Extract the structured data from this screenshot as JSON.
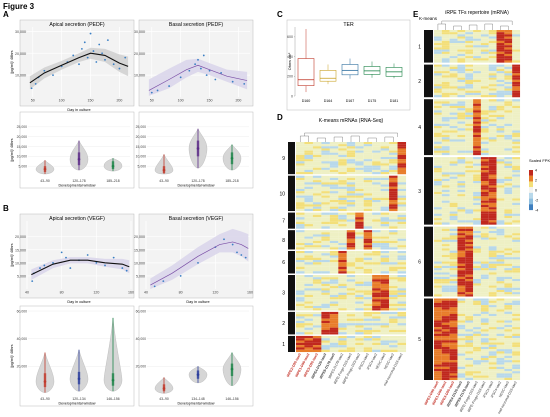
{
  "figure": {
    "title": "Figure 3"
  },
  "panel_letters": [
    "A",
    "B",
    "C",
    "D",
    "E"
  ],
  "chart_data": [
    {
      "id": "A-apical",
      "type": "scatter",
      "panel": "A",
      "title": "Apical secretion (PEDF)",
      "xlabel": "Day in culture",
      "ylabel": "[pg/ml]/ 48hrs",
      "xlim": [
        40,
        220
      ],
      "ylim": [
        0,
        32000
      ],
      "xticks": [
        "50",
        "100",
        "150",
        "200"
      ],
      "xtick_values": [
        50,
        100,
        150,
        200
      ],
      "yticks": [
        "10,000",
        "20,000",
        "30,000"
      ],
      "ytick_values": [
        10000,
        20000,
        30000
      ],
      "smooth": [
        [
          45,
          6500
        ],
        [
          70,
          11000
        ],
        [
          100,
          14500
        ],
        [
          130,
          18000
        ],
        [
          150,
          20000
        ],
        [
          175,
          19000
        ],
        [
          200,
          15500
        ],
        [
          215,
          14000
        ]
      ],
      "band": [
        [
          45,
          3500,
          9500
        ],
        [
          70,
          8500,
          13500
        ],
        [
          100,
          12500,
          16500
        ],
        [
          130,
          16000,
          20000
        ],
        [
          150,
          17500,
          22500
        ],
        [
          175,
          16000,
          22000
        ],
        [
          200,
          11500,
          19500
        ],
        [
          215,
          9500,
          18500
        ]
      ],
      "points": [
        [
          48,
          4000
        ],
        [
          55,
          6000
        ],
        [
          60,
          9000
        ],
        [
          70,
          12000
        ],
        [
          85,
          10000
        ],
        [
          100,
          14000
        ],
        [
          110,
          16000
        ],
        [
          120,
          19000
        ],
        [
          130,
          15000
        ],
        [
          135,
          22000
        ],
        [
          140,
          25000
        ],
        [
          145,
          18000
        ],
        [
          150,
          29000
        ],
        [
          155,
          21000
        ],
        [
          160,
          16000
        ],
        [
          165,
          24000
        ],
        [
          170,
          20000
        ],
        [
          175,
          17000
        ],
        [
          180,
          26000
        ],
        [
          190,
          15000
        ],
        [
          200,
          13000
        ],
        [
          210,
          18000
        ]
      ]
    },
    {
      "id": "A-basal",
      "type": "scatter",
      "panel": "A",
      "title": "Basal secretion (PEDF)",
      "xlabel": "",
      "ylabel": "",
      "xlim": [
        40,
        220
      ],
      "ylim": [
        0,
        32000
      ],
      "xticks": [
        "50",
        "100",
        "150",
        "200"
      ],
      "xtick_values": [
        50,
        100,
        150,
        200
      ],
      "yticks": [
        "10,000",
        "20,000",
        "30,000"
      ],
      "ytick_values": [
        10000,
        20000,
        30000
      ],
      "smooth": [
        [
          45,
          3000
        ],
        [
          80,
          8000
        ],
        [
          110,
          12500
        ],
        [
          130,
          14500
        ],
        [
          150,
          12500
        ],
        [
          180,
          9500
        ],
        [
          215,
          7500
        ]
      ],
      "band": [
        [
          45,
          500,
          8000
        ],
        [
          80,
          4000,
          13000
        ],
        [
          110,
          9000,
          17000
        ],
        [
          130,
          11500,
          17500
        ],
        [
          150,
          10000,
          15500
        ],
        [
          180,
          7000,
          12500
        ],
        [
          215,
          3500,
          11500
        ]
      ],
      "points": [
        [
          50,
          2000
        ],
        [
          60,
          3000
        ],
        [
          80,
          5000
        ],
        [
          100,
          9000
        ],
        [
          115,
          12000
        ],
        [
          125,
          15000
        ],
        [
          130,
          17000
        ],
        [
          135,
          13000
        ],
        [
          140,
          19000
        ],
        [
          145,
          10000
        ],
        [
          150,
          12000
        ],
        [
          160,
          8000
        ],
        [
          170,
          11000
        ],
        [
          190,
          7000
        ],
        [
          210,
          6000
        ]
      ]
    },
    {
      "id": "A-window",
      "type": "violin",
      "panel": "A",
      "xlabel": "Developmental window",
      "ylabel": "[pg/ml]/ 48hrs",
      "categories": [
        "43–90",
        "120–178",
        "185–218"
      ],
      "ylim": [
        0,
        30000
      ],
      "yticks": [
        "5,000",
        "10,000",
        "15,000",
        "20,000",
        "25,000"
      ],
      "ytick_values": [
        5000,
        10000,
        15000,
        20000,
        25000
      ],
      "series": [
        {
          "name": "Apical",
          "medians": [
            3500,
            8500,
            5000
          ],
          "q1": [
            2000,
            5500,
            3500
          ],
          "q3": [
            5000,
            12000,
            7500
          ],
          "mins": [
            1000,
            3000,
            2500
          ],
          "maxs": [
            8000,
            18000,
            9000
          ],
          "colors": [
            "#c0392b",
            "#5b2a86",
            "#1e8449"
          ]
        },
        {
          "name": "Basal",
          "medians": [
            3000,
            14000,
            9000
          ],
          "q1": [
            1500,
            10000,
            6000
          ],
          "q3": [
            5000,
            18000,
            12000
          ],
          "mins": [
            1000,
            4000,
            3000
          ],
          "maxs": [
            11000,
            24000,
            16000
          ],
          "colors": [
            "#c0392b",
            "#5b2a86",
            "#1e8449"
          ]
        }
      ]
    },
    {
      "id": "B-apical",
      "type": "scatter",
      "panel": "B",
      "title": "Apical secretion (VEGF)",
      "xlabel": "Day in culture",
      "ylabel": "[pg/ml]/ 48hrs",
      "xlim": [
        40,
        160
      ],
      "ylim": [
        0,
        26000
      ],
      "xticks": [
        "40",
        "80",
        "120",
        "160"
      ],
      "xtick_values": [
        40,
        80,
        120,
        160
      ],
      "yticks": [
        "5,000",
        "10,000",
        "15,000",
        "20,000"
      ],
      "ytick_values": [
        5000,
        10000,
        15000,
        20000
      ],
      "smooth": [
        [
          45,
          5500
        ],
        [
          70,
          9500
        ],
        [
          90,
          11000
        ],
        [
          110,
          11000
        ],
        [
          130,
          10000
        ],
        [
          150,
          9500
        ],
        [
          158,
          8500
        ]
      ],
      "band": [
        [
          45,
          3500,
          7500
        ],
        [
          70,
          8000,
          11000
        ],
        [
          90,
          9800,
          12200
        ],
        [
          110,
          9800,
          12200
        ],
        [
          130,
          8500,
          11500
        ],
        [
          150,
          7500,
          11500
        ],
        [
          158,
          6000,
          11000
        ]
      ],
      "points": [
        [
          46,
          3000
        ],
        [
          48,
          6000
        ],
        [
          55,
          8000
        ],
        [
          60,
          9000
        ],
        [
          70,
          10000
        ],
        [
          80,
          14000
        ],
        [
          85,
          12000
        ],
        [
          90,
          8000
        ],
        [
          100,
          11000
        ],
        [
          110,
          13000
        ],
        [
          120,
          10000
        ],
        [
          130,
          9000
        ],
        [
          140,
          12000
        ],
        [
          150,
          8000
        ],
        [
          155,
          7000
        ]
      ]
    },
    {
      "id": "B-basal",
      "type": "scatter",
      "panel": "B",
      "title": "Basal secretion (VEGF)",
      "xlabel": "Day in culture",
      "ylabel": "",
      "xlim": [
        40,
        160
      ],
      "ylim": [
        0,
        26000
      ],
      "xticks": [
        "40",
        "80",
        "120",
        "160"
      ],
      "xtick_values": [
        40,
        80,
        120,
        160
      ],
      "yticks": [
        "5,000",
        "10,000",
        "15,000",
        "20,000"
      ],
      "ytick_values": [
        5000,
        10000,
        15000,
        20000
      ],
      "smooth": [
        [
          45,
          1500
        ],
        [
          70,
          6000
        ],
        [
          100,
          12500
        ],
        [
          125,
          17000
        ],
        [
          140,
          18000
        ],
        [
          150,
          17000
        ],
        [
          158,
          15500
        ]
      ],
      "band": [
        [
          45,
          0,
          4000
        ],
        [
          70,
          3500,
          9000
        ],
        [
          100,
          9500,
          16000
        ],
        [
          125,
          14000,
          21000
        ],
        [
          140,
          14000,
          23000
        ],
        [
          150,
          12500,
          22000
        ],
        [
          158,
          10500,
          21000
        ]
      ],
      "points": [
        [
          50,
          1000
        ],
        [
          60,
          3000
        ],
        [
          80,
          5000
        ],
        [
          100,
          10000
        ],
        [
          120,
          16000
        ],
        [
          130,
          19000
        ],
        [
          140,
          17000
        ],
        [
          145,
          14000
        ],
        [
          150,
          13000
        ],
        [
          155,
          12000
        ]
      ]
    },
    {
      "id": "B-window",
      "type": "violin",
      "panel": "B",
      "xlabel": "Developmental window",
      "ylabel": "[pg/ml]/ 48hrs",
      "ylim": [
        0,
        60000
      ],
      "yticks": [
        "20,000",
        "40,000",
        "60,000"
      ],
      "ytick_values": [
        20000,
        40000,
        60000
      ],
      "series": [
        {
          "name": "Apical",
          "categories": [
            "43–90",
            "120–134",
            "146–156"
          ],
          "medians": [
            9000,
            11000,
            10000
          ],
          "q1": [
            5000,
            7000,
            6000
          ],
          "q3": [
            15000,
            16000,
            15000
          ],
          "mins": [
            1000,
            2000,
            2000
          ],
          "maxs": [
            30000,
            32000,
            55000
          ],
          "colors": [
            "#c0392b",
            "#2c3e9c",
            "#1e8449"
          ]
        },
        {
          "name": "Basal",
          "categories": [
            "43–90",
            "134–148",
            "146–156"
          ],
          "medians": [
            4000,
            14000,
            18000
          ],
          "q1": [
            2000,
            11000,
            13000
          ],
          "q3": [
            7000,
            17000,
            22000
          ],
          "mins": [
            500,
            8000,
            6000
          ],
          "maxs": [
            12000,
            20000,
            30000
          ],
          "colors": [
            "#c0392b",
            "#2c3e9c",
            "#1e8449"
          ]
        }
      ]
    },
    {
      "id": "C-TER",
      "type": "box",
      "panel": "C",
      "title": "TER",
      "xlabel": "",
      "ylabel": "Ohms cm²",
      "categories": [
        "D160",
        "D164",
        "D167",
        "D175",
        "D181"
      ],
      "ylim": [
        0,
        700
      ],
      "yticks": [
        "0",
        "200",
        "400",
        "600"
      ],
      "ytick_values": [
        0,
        200,
        400,
        600
      ],
      "medians": [
        165,
        180,
        260,
        255,
        245
      ],
      "q1": [
        105,
        150,
        215,
        220,
        200
      ],
      "q3": [
        380,
        260,
        320,
        300,
        290
      ],
      "mins": [
        40,
        120,
        175,
        185,
        180
      ],
      "maxs": [
        680,
        320,
        380,
        350,
        330
      ],
      "colors": [
        "#c0392b",
        "#c9a227",
        "#2f6f9f",
        "#1e8449",
        "#1e8449"
      ]
    },
    {
      "id": "D-kmeans",
      "type": "heatmap",
      "panel": "D",
      "title": "K-means mRNAs (RNA-Seq)",
      "row_groups": [
        "9",
        "10",
        "7",
        "8",
        "6",
        "3",
        "2",
        "1"
      ],
      "column_labels": [
        "IRPE2-D90-iaw0",
        "IRPE1-D90-iaw2",
        "IRPE3-D90-iaw3",
        "IRPE4-D120-iaw3",
        "IRPE5-D178-iaw0",
        "IRPE5-D178-iaw2",
        "IRPE-Frngc-D33-iaw3",
        "IRPE-Frngc-D33-iaw2",
        "iPSCs-iaw3",
        "iPSCs-iaw2",
        "hESC-iaw3",
        "hESC-iaw2",
        "mid-neuronal-D33-iaw2"
      ],
      "high_cells": [
        [
          0,
          12
        ],
        [
          1,
          11
        ],
        [
          2,
          7
        ],
        [
          3,
          6
        ],
        [
          3,
          8
        ],
        [
          4,
          5
        ],
        [
          5,
          9
        ],
        [
          5,
          10
        ],
        [
          6,
          4
        ],
        [
          6,
          3
        ],
        [
          7,
          0
        ],
        [
          7,
          1
        ],
        [
          7,
          2
        ]
      ]
    },
    {
      "id": "E-tfs",
      "type": "heatmap",
      "panel": "E",
      "title": "iRPE TFs repertoire (mRNA)",
      "row_title": "K-means",
      "row_groups": [
        "1",
        "2",
        "4",
        "3",
        "6",
        "5"
      ],
      "legend_title": "Scaled FPKM",
      "legend_ticks": [
        "4",
        "2",
        "0",
        "-2",
        "-4"
      ],
      "legend_tick_values": [
        4,
        2,
        0,
        -2,
        -4
      ],
      "column_labels": [
        "IRPE2-D90-iaw0",
        "IRPE1-D90-iaw2",
        "IRPE3-D90-iaw3",
        "IRPE4-D120-iaw3",
        "IRPE5-D178-iaw0",
        "IRPE-Frngc-D33-iaw3",
        "IRPE-Frngc-D33-iaw2",
        "iPSCs-iaw3",
        "iPSCs-iaw2",
        "hESC-iaw3",
        "mid-neuronal-D33-iaw2"
      ],
      "high_cells": [
        [
          0,
          8
        ],
        [
          0,
          9
        ],
        [
          1,
          10
        ],
        [
          2,
          5
        ],
        [
          3,
          6
        ],
        [
          3,
          7
        ],
        [
          4,
          3
        ],
        [
          4,
          4
        ],
        [
          5,
          0
        ],
        [
          5,
          1
        ],
        [
          5,
          2
        ]
      ]
    }
  ]
}
